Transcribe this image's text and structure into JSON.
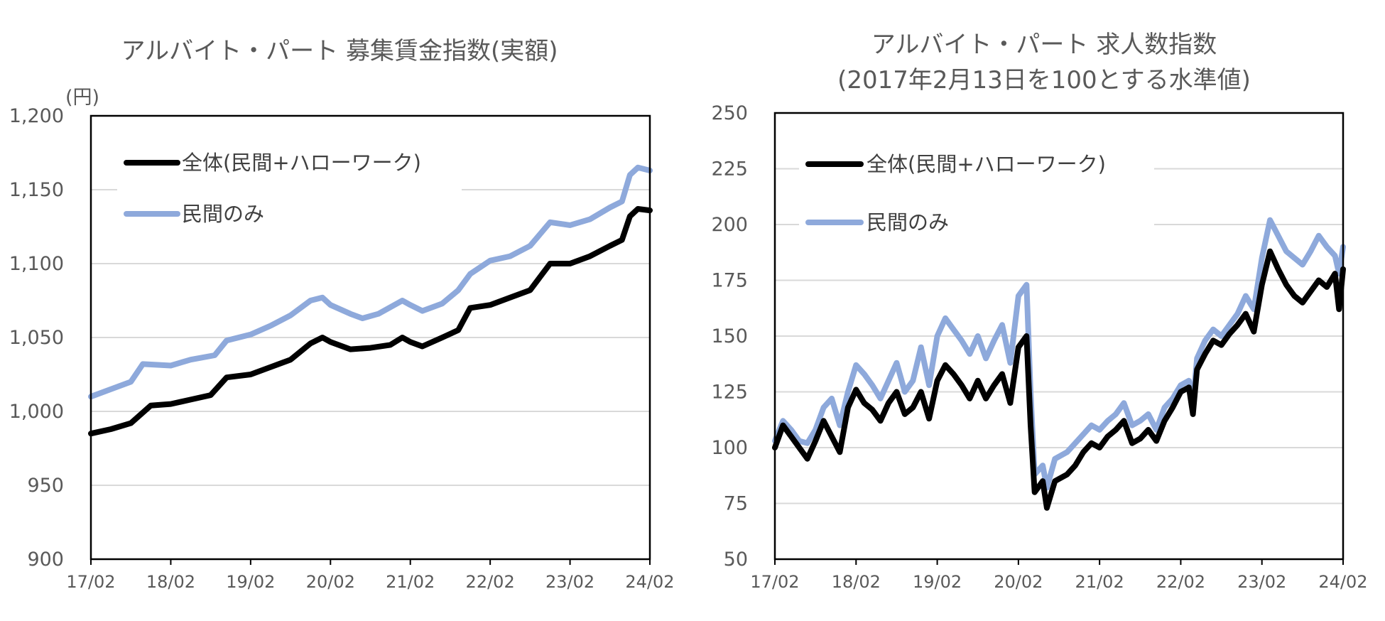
{
  "chart_data": [
    {
      "type": "line",
      "title": "アルバイト・パート 募集賃金指数(実額)",
      "unit_label": "(円)",
      "x_ticks": [
        "17/02",
        "18/02",
        "19/02",
        "20/02",
        "21/02",
        "22/02",
        "23/02",
        "24/02"
      ],
      "ylim": [
        900,
        1200
      ],
      "y_ticks": [
        "900",
        "950",
        "1,000",
        "1,050",
        "1,100",
        "1,150",
        "1,200"
      ],
      "grid": true,
      "legend_position": "top-left",
      "series": [
        {
          "name": "全体(民間+ハローワーク)",
          "color": "#000000",
          "points": [
            [
              2017.0,
              985
            ],
            [
              2017.25,
              988
            ],
            [
              2017.5,
              992
            ],
            [
              2017.75,
              1004
            ],
            [
              2018.0,
              1005
            ],
            [
              2018.25,
              1008
            ],
            [
              2018.5,
              1011
            ],
            [
              2018.7,
              1023
            ],
            [
              2019.0,
              1025
            ],
            [
              2019.25,
              1030
            ],
            [
              2019.5,
              1035
            ],
            [
              2019.75,
              1046
            ],
            [
              2019.9,
              1050
            ],
            [
              2020.0,
              1047
            ],
            [
              2020.25,
              1042
            ],
            [
              2020.5,
              1043
            ],
            [
              2020.75,
              1045
            ],
            [
              2020.9,
              1050
            ],
            [
              2021.0,
              1047
            ],
            [
              2021.15,
              1044
            ],
            [
              2021.4,
              1050
            ],
            [
              2021.6,
              1055
            ],
            [
              2021.75,
              1070
            ],
            [
              2022.0,
              1072
            ],
            [
              2022.25,
              1077
            ],
            [
              2022.5,
              1082
            ],
            [
              2022.75,
              1100
            ],
            [
              2023.0,
              1100
            ],
            [
              2023.25,
              1105
            ],
            [
              2023.5,
              1112
            ],
            [
              2023.65,
              1116
            ],
            [
              2023.75,
              1132
            ],
            [
              2023.85,
              1137
            ],
            [
              2024.0,
              1136
            ]
          ]
        },
        {
          "name": "民間のみ",
          "color": "#8EA9DB",
          "points": [
            [
              2017.0,
              1010
            ],
            [
              2017.25,
              1015
            ],
            [
              2017.5,
              1020
            ],
            [
              2017.65,
              1032
            ],
            [
              2018.0,
              1031
            ],
            [
              2018.25,
              1035
            ],
            [
              2018.55,
              1038
            ],
            [
              2018.7,
              1048
            ],
            [
              2019.0,
              1052
            ],
            [
              2019.25,
              1058
            ],
            [
              2019.5,
              1065
            ],
            [
              2019.75,
              1075
            ],
            [
              2019.9,
              1077
            ],
            [
              2020.0,
              1072
            ],
            [
              2020.25,
              1066
            ],
            [
              2020.4,
              1063
            ],
            [
              2020.6,
              1066
            ],
            [
              2020.9,
              1075
            ],
            [
              2021.0,
              1072
            ],
            [
              2021.15,
              1068
            ],
            [
              2021.4,
              1073
            ],
            [
              2021.6,
              1082
            ],
            [
              2021.75,
              1093
            ],
            [
              2022.0,
              1102
            ],
            [
              2022.25,
              1105
            ],
            [
              2022.5,
              1112
            ],
            [
              2022.75,
              1128
            ],
            [
              2023.0,
              1126
            ],
            [
              2023.25,
              1130
            ],
            [
              2023.5,
              1138
            ],
            [
              2023.65,
              1142
            ],
            [
              2023.75,
              1160
            ],
            [
              2023.85,
              1165
            ],
            [
              2024.0,
              1163
            ]
          ]
        }
      ]
    },
    {
      "type": "line",
      "title": "アルバイト・パート 求人数指数",
      "subtitle": "(2017年2月13日を100とする水準値)",
      "x_ticks": [
        "17/02",
        "18/02",
        "19/02",
        "20/02",
        "21/02",
        "22/02",
        "23/02",
        "24/02"
      ],
      "ylim": [
        50,
        250
      ],
      "y_ticks": [
        "50",
        "75",
        "100",
        "125",
        "150",
        "175",
        "200",
        "225",
        "250"
      ],
      "grid": true,
      "legend_position": "top-left",
      "series": [
        {
          "name": "全体(民間+ハローワーク)",
          "color": "#000000",
          "points": [
            [
              2017.0,
              100
            ],
            [
              2017.1,
              110
            ],
            [
              2017.2,
              105
            ],
            [
              2017.3,
              100
            ],
            [
              2017.4,
              95
            ],
            [
              2017.5,
              103
            ],
            [
              2017.6,
              112
            ],
            [
              2017.7,
              105
            ],
            [
              2017.8,
              98
            ],
            [
              2017.9,
              118
            ],
            [
              2018.0,
              126
            ],
            [
              2018.1,
              120
            ],
            [
              2018.2,
              117
            ],
            [
              2018.3,
              112
            ],
            [
              2018.4,
              120
            ],
            [
              2018.5,
              125
            ],
            [
              2018.6,
              115
            ],
            [
              2018.7,
              118
            ],
            [
              2018.8,
              125
            ],
            [
              2018.9,
              113
            ],
            [
              2019.0,
              130
            ],
            [
              2019.1,
              137
            ],
            [
              2019.2,
              133
            ],
            [
              2019.3,
              128
            ],
            [
              2019.4,
              122
            ],
            [
              2019.5,
              130
            ],
            [
              2019.6,
              122
            ],
            [
              2019.7,
              128
            ],
            [
              2019.8,
              133
            ],
            [
              2019.9,
              120
            ],
            [
              2020.0,
              145
            ],
            [
              2020.1,
              150
            ],
            [
              2020.15,
              110
            ],
            [
              2020.2,
              80
            ],
            [
              2020.3,
              85
            ],
            [
              2020.35,
              73
            ],
            [
              2020.45,
              85
            ],
            [
              2020.6,
              88
            ],
            [
              2020.7,
              92
            ],
            [
              2020.8,
              98
            ],
            [
              2020.9,
              102
            ],
            [
              2021.0,
              100
            ],
            [
              2021.1,
              105
            ],
            [
              2021.2,
              108
            ],
            [
              2021.3,
              112
            ],
            [
              2021.4,
              102
            ],
            [
              2021.5,
              104
            ],
            [
              2021.6,
              108
            ],
            [
              2021.7,
              103
            ],
            [
              2021.8,
              112
            ],
            [
              2021.9,
              118
            ],
            [
              2022.0,
              125
            ],
            [
              2022.1,
              127
            ],
            [
              2022.15,
              115
            ],
            [
              2022.2,
              135
            ],
            [
              2022.3,
              142
            ],
            [
              2022.4,
              148
            ],
            [
              2022.5,
              146
            ],
            [
              2022.6,
              151
            ],
            [
              2022.7,
              155
            ],
            [
              2022.8,
              160
            ],
            [
              2022.9,
              152
            ],
            [
              2023.0,
              173
            ],
            [
              2023.1,
              188
            ],
            [
              2023.2,
              180
            ],
            [
              2023.3,
              173
            ],
            [
              2023.4,
              168
            ],
            [
              2023.5,
              165
            ],
            [
              2023.6,
              170
            ],
            [
              2023.7,
              175
            ],
            [
              2023.8,
              172
            ],
            [
              2023.9,
              178
            ],
            [
              2023.95,
              162
            ],
            [
              2024.0,
              180
            ]
          ]
        },
        {
          "name": "民間のみ",
          "color": "#8EA9DB",
          "points": [
            [
              2017.0,
              103
            ],
            [
              2017.1,
              112
            ],
            [
              2017.2,
              108
            ],
            [
              2017.3,
              103
            ],
            [
              2017.4,
              102
            ],
            [
              2017.5,
              108
            ],
            [
              2017.6,
              118
            ],
            [
              2017.7,
              122
            ],
            [
              2017.8,
              110
            ],
            [
              2017.9,
              125
            ],
            [
              2018.0,
              137
            ],
            [
              2018.1,
              133
            ],
            [
              2018.2,
              128
            ],
            [
              2018.3,
              122
            ],
            [
              2018.4,
              130
            ],
            [
              2018.5,
              138
            ],
            [
              2018.6,
              125
            ],
            [
              2018.7,
              130
            ],
            [
              2018.8,
              145
            ],
            [
              2018.9,
              128
            ],
            [
              2019.0,
              150
            ],
            [
              2019.1,
              158
            ],
            [
              2019.2,
              153
            ],
            [
              2019.3,
              148
            ],
            [
              2019.4,
              142
            ],
            [
              2019.5,
              150
            ],
            [
              2019.6,
              140
            ],
            [
              2019.7,
              148
            ],
            [
              2019.8,
              155
            ],
            [
              2019.9,
              138
            ],
            [
              2020.0,
              168
            ],
            [
              2020.1,
              173
            ],
            [
              2020.15,
              125
            ],
            [
              2020.2,
              88
            ],
            [
              2020.3,
              92
            ],
            [
              2020.35,
              82
            ],
            [
              2020.45,
              95
            ],
            [
              2020.6,
              98
            ],
            [
              2020.7,
              102
            ],
            [
              2020.8,
              106
            ],
            [
              2020.9,
              110
            ],
            [
              2021.0,
              108
            ],
            [
              2021.1,
              112
            ],
            [
              2021.2,
              115
            ],
            [
              2021.3,
              120
            ],
            [
              2021.4,
              110
            ],
            [
              2021.5,
              112
            ],
            [
              2021.6,
              115
            ],
            [
              2021.7,
              108
            ],
            [
              2021.8,
              118
            ],
            [
              2021.9,
              122
            ],
            [
              2022.0,
              128
            ],
            [
              2022.1,
              130
            ],
            [
              2022.15,
              120
            ],
            [
              2022.2,
              140
            ],
            [
              2022.3,
              148
            ],
            [
              2022.4,
              153
            ],
            [
              2022.5,
              150
            ],
            [
              2022.6,
              155
            ],
            [
              2022.7,
              160
            ],
            [
              2022.8,
              168
            ],
            [
              2022.9,
              162
            ],
            [
              2023.0,
              185
            ],
            [
              2023.1,
              202
            ],
            [
              2023.2,
              195
            ],
            [
              2023.3,
              188
            ],
            [
              2023.4,
              185
            ],
            [
              2023.5,
              182
            ],
            [
              2023.6,
              188
            ],
            [
              2023.7,
              195
            ],
            [
              2023.8,
              190
            ],
            [
              2023.9,
              186
            ],
            [
              2023.95,
              178
            ],
            [
              2024.0,
              190
            ]
          ]
        }
      ]
    }
  ]
}
